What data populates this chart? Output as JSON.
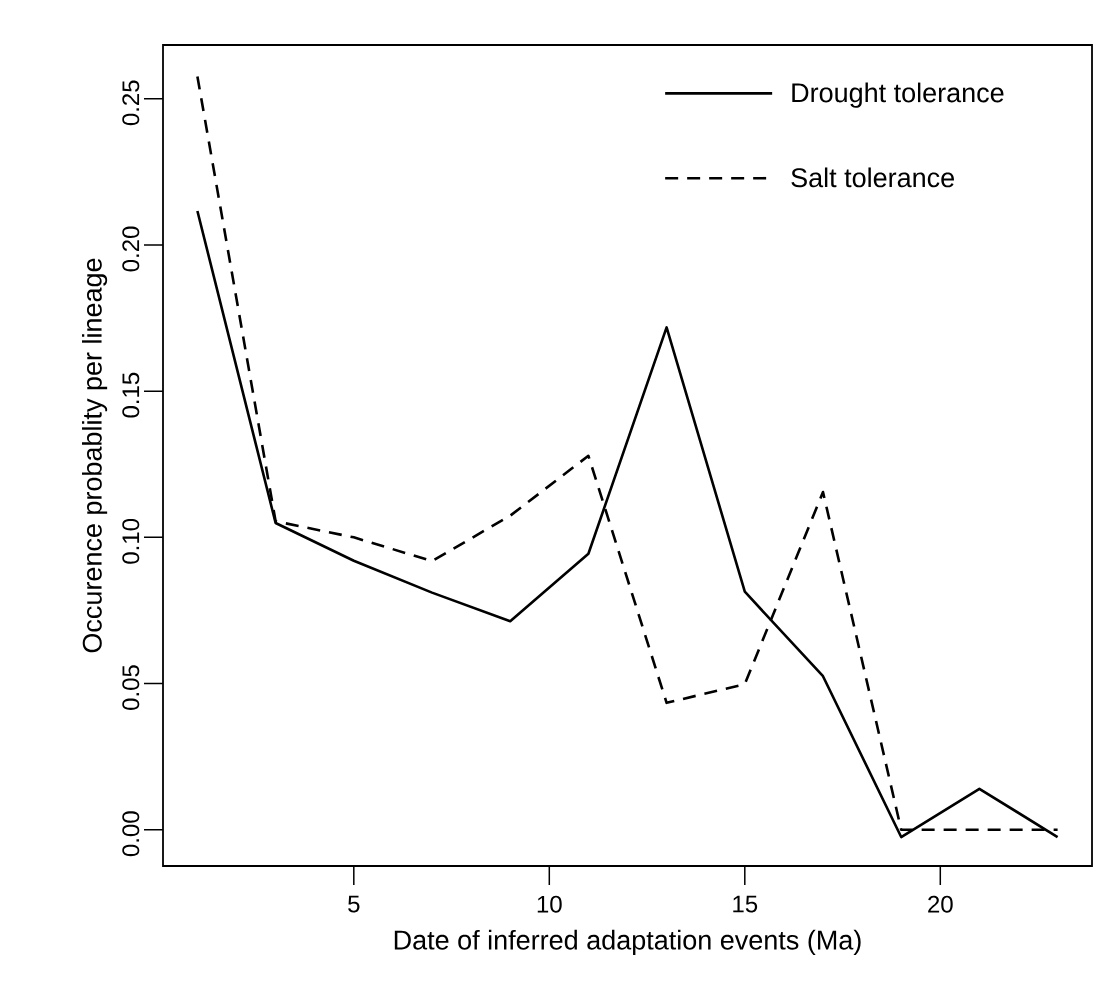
{
  "chart_data": {
    "type": "line",
    "xlabel": "Date of inferred adaptation events (Ma)",
    "ylabel": "Occurence probablity per lineage",
    "x": [
      1,
      3,
      5,
      7,
      9,
      11,
      13,
      15,
      17,
      19,
      21,
      23
    ],
    "series": [
      {
        "name": "Drought tolerance",
        "color": "#000000",
        "line_style": "solid",
        "values": [
          0.2116,
          0.1049,
          0.092,
          0.0811,
          0.0713,
          0.0944,
          0.1718,
          0.0814,
          0.0525,
          -0.0025,
          0.014,
          -0.0025
        ]
      },
      {
        "name": "Salt tolerance",
        "color": "#000000",
        "line_style": "dashed",
        "values": [
          0.2576,
          0.1055,
          0.1,
          0.0919,
          0.1074,
          0.1279,
          0.0434,
          0.0498,
          0.1155,
          0.0,
          0.0,
          0.0
        ]
      }
    ],
    "xlim": [
      0.12,
      23.88
    ],
    "ylim": [
      -0.0124,
      0.2684
    ],
    "xticks": [
      5,
      10,
      15,
      20
    ],
    "yticks": [
      {
        "value": 0,
        "label": "0.00"
      },
      {
        "value": 0.05,
        "label": "0.05"
      },
      {
        "value": 0.1,
        "label": "0.10"
      },
      {
        "value": 0.15,
        "label": "0.15"
      },
      {
        "value": 0.2,
        "label": "0.20"
      },
      {
        "value": 0.25,
        "label": "0.25"
      }
    ],
    "grid": false,
    "legend": "top right",
    "marker": "none"
  }
}
